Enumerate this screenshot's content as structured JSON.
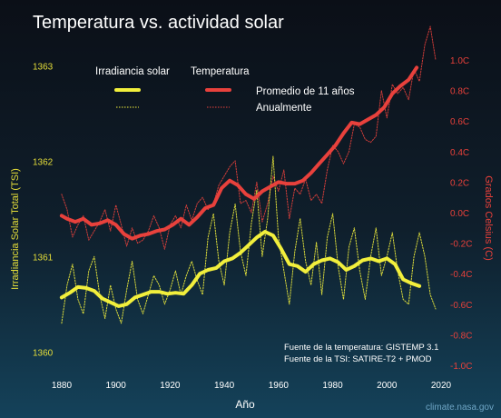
{
  "chart_data": {
    "type": "line",
    "title": "Temperatura vs. actividad solar",
    "xlabel": "Año",
    "ylabel_left": "Irradiancia Solar Total (TSI)",
    "ylabel_right": "Grados Celsius (C)",
    "xlim": [
      1876,
      2020
    ],
    "x_ticks": [
      "1880",
      "1900",
      "1920",
      "1940",
      "1960",
      "1980",
      "2000",
      "2020"
    ],
    "left_ticks": [
      "1360",
      "1361",
      "1362",
      "1363"
    ],
    "right_ticks": [
      "-1.0C",
      "-0.8C",
      "-0.6C",
      "-0.4C",
      "-0.2C",
      "0.0C",
      "0.2C",
      "0.4C",
      "0.6C",
      "0.8C",
      "1.0C"
    ],
    "ylim_left": [
      1359.86,
      1363.06
    ],
    "ylim_right": [
      -1.0,
      1.0
    ],
    "legend": {
      "group_tsi": "Irradiancia solar",
      "group_temp": "Temperatura",
      "smooth_label": "Promedio de 11 años",
      "annual_label": "Anualmente"
    },
    "sources": [
      "Fuente de la temperatura: GISTEMP 3.1",
      "Fuente de la TSI: SATIRE-T2 + PMOD"
    ],
    "credit": "climate.nasa.gov",
    "colors": {
      "tsi": "#f2ef3c",
      "temp": "#e8413c",
      "right_axis": "#e8403a",
      "left_axis": "#e6df39"
    },
    "series": [
      {
        "name": "Temperatura",
        "style": "Promedio de 11 años",
        "axis": "right",
        "x": [
          1880,
          1882,
          1885,
          1888,
          1891,
          1894,
          1897,
          1900,
          1903,
          1906,
          1909,
          1912,
          1915,
          1918,
          1921,
          1924,
          1927,
          1930,
          1933,
          1936,
          1939,
          1942,
          1945,
          1948,
          1951,
          1954,
          1957,
          1960,
          1963,
          1966,
          1969,
          1972,
          1975,
          1978,
          1981,
          1984,
          1987,
          1990,
          1993,
          1996,
          1999,
          2002,
          2005,
          2008,
          2011
        ],
        "y": [
          -0.02,
          -0.04,
          -0.06,
          -0.04,
          -0.08,
          -0.07,
          -0.05,
          -0.08,
          -0.14,
          -0.17,
          -0.15,
          -0.14,
          -0.12,
          -0.11,
          -0.08,
          -0.04,
          -0.08,
          -0.03,
          0.03,
          0.05,
          0.16,
          0.21,
          0.18,
          0.12,
          0.09,
          0.14,
          0.17,
          0.2,
          0.19,
          0.19,
          0.21,
          0.26,
          0.32,
          0.38,
          0.44,
          0.52,
          0.59,
          0.58,
          0.61,
          0.64,
          0.69,
          0.78,
          0.83,
          0.87,
          0.95
        ]
      },
      {
        "name": "Temperatura",
        "style": "Anualmente",
        "axis": "right",
        "x": [
          1880,
          1882,
          1884,
          1886,
          1888,
          1890,
          1892,
          1894,
          1896,
          1898,
          1900,
          1902,
          1904,
          1906,
          1908,
          1910,
          1912,
          1914,
          1916,
          1918,
          1920,
          1922,
          1924,
          1926,
          1928,
          1930,
          1932,
          1934,
          1936,
          1938,
          1940,
          1942,
          1944,
          1946,
          1948,
          1950,
          1952,
          1954,
          1956,
          1958,
          1960,
          1962,
          1964,
          1966,
          1968,
          1970,
          1972,
          1974,
          1976,
          1978,
          1980,
          1982,
          1984,
          1986,
          1988,
          1990,
          1992,
          1994,
          1996,
          1998,
          2000,
          2002,
          2004,
          2006,
          2008,
          2010,
          2012,
          2014,
          2016,
          2018
        ],
        "y": [
          0.12,
          0.02,
          -0.16,
          -0.08,
          -0.02,
          -0.18,
          -0.12,
          -0.06,
          0.02,
          -0.12,
          0.05,
          -0.08,
          -0.22,
          -0.1,
          -0.2,
          -0.18,
          -0.12,
          -0.02,
          -0.1,
          -0.24,
          -0.08,
          -0.02,
          -0.1,
          0.05,
          -0.05,
          0.06,
          0.1,
          0.02,
          0.06,
          0.18,
          0.24,
          0.3,
          0.34,
          0.06,
          0.08,
          0.0,
          0.2,
          -0.06,
          0.06,
          0.24,
          0.14,
          0.28,
          -0.04,
          0.16,
          0.12,
          0.22,
          0.08,
          0.12,
          0.06,
          0.28,
          0.44,
          0.4,
          0.32,
          0.4,
          0.58,
          0.56,
          0.48,
          0.46,
          0.5,
          0.8,
          0.62,
          0.84,
          0.78,
          0.82,
          0.74,
          0.94,
          0.86,
          1.1,
          1.22,
          1.0
        ]
      },
      {
        "name": "Irradiancia solar",
        "style": "Promedio de 11 años",
        "axis": "left",
        "x": [
          1880,
          1883,
          1886,
          1889,
          1892,
          1895,
          1898,
          1901,
          1904,
          1907,
          1910,
          1913,
          1916,
          1919,
          1922,
          1925,
          1928,
          1931,
          1934,
          1937,
          1940,
          1943,
          1946,
          1949,
          1952,
          1955,
          1958,
          1961,
          1964,
          1967,
          1970,
          1973,
          1976,
          1979,
          1982,
          1985,
          1988,
          1991,
          1994,
          1997,
          2000,
          2003,
          2006,
          2009,
          2012
        ],
        "y": [
          1360.57,
          1360.62,
          1360.68,
          1360.67,
          1360.64,
          1360.56,
          1360.52,
          1360.48,
          1360.5,
          1360.57,
          1360.6,
          1360.63,
          1360.63,
          1360.61,
          1360.62,
          1360.61,
          1360.7,
          1360.82,
          1360.86,
          1360.88,
          1360.95,
          1360.98,
          1361.04,
          1361.12,
          1361.2,
          1361.26,
          1361.22,
          1361.08,
          1360.92,
          1360.9,
          1360.84,
          1360.92,
          1360.96,
          1360.98,
          1360.94,
          1360.86,
          1360.9,
          1360.96,
          1360.98,
          1360.95,
          1360.98,
          1360.92,
          1360.76,
          1360.72,
          1360.69
        ]
      },
      {
        "name": "Irradiancia solar",
        "style": "Anualmente",
        "axis": "left",
        "x": [
          1880,
          1882,
          1884,
          1886,
          1888,
          1890,
          1892,
          1894,
          1896,
          1898,
          1900,
          1902,
          1904,
          1906,
          1908,
          1910,
          1912,
          1914,
          1916,
          1918,
          1920,
          1922,
          1924,
          1926,
          1928,
          1930,
          1932,
          1934,
          1936,
          1938,
          1940,
          1942,
          1944,
          1946,
          1948,
          1950,
          1952,
          1954,
          1956,
          1958,
          1960,
          1962,
          1964,
          1966,
          1968,
          1970,
          1972,
          1974,
          1976,
          1978,
          1980,
          1982,
          1984,
          1986,
          1988,
          1990,
          1992,
          1994,
          1996,
          1998,
          2000,
          2002,
          2004,
          2006,
          2008,
          2010,
          2012,
          2014,
          2016,
          2018
        ],
        "y": [
          1360.3,
          1360.7,
          1360.92,
          1360.55,
          1360.4,
          1360.85,
          1361.0,
          1360.6,
          1360.35,
          1360.7,
          1360.45,
          1360.3,
          1360.65,
          1360.95,
          1360.55,
          1360.4,
          1360.6,
          1360.8,
          1360.7,
          1360.5,
          1360.65,
          1360.85,
          1360.6,
          1360.8,
          1360.95,
          1360.75,
          1360.6,
          1361.2,
          1361.45,
          1360.95,
          1360.7,
          1361.25,
          1361.55,
          1361.05,
          1360.8,
          1361.35,
          1361.7,
          1361.0,
          1361.4,
          1362.05,
          1361.2,
          1360.85,
          1360.5,
          1361.05,
          1361.4,
          1360.95,
          1360.7,
          1361.15,
          1360.6,
          1361.2,
          1361.45,
          1360.9,
          1360.55,
          1361.1,
          1361.3,
          1360.85,
          1360.55,
          1361.0,
          1361.3,
          1360.8,
          1361.0,
          1361.25,
          1360.85,
          1360.55,
          1360.5,
          1361.0,
          1361.25,
          1361.0,
          1360.6,
          1360.45
        ]
      }
    ]
  }
}
